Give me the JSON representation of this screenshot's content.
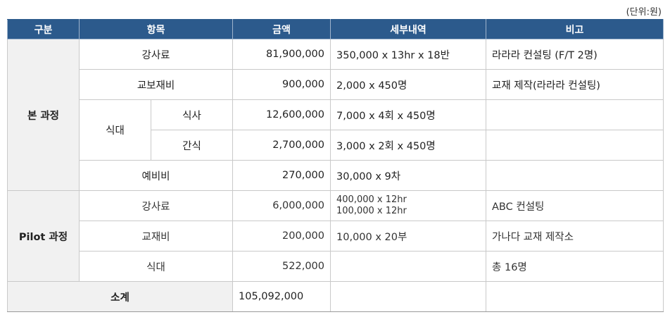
{
  "unit_label": "(단위:원)",
  "headers": {
    "category": "구분",
    "item": "항목",
    "amount": "금액",
    "detail": "세부내역",
    "note": "비고"
  },
  "main_course": {
    "label": "본 과정",
    "lecture": {
      "item": "강사료",
      "amount": "81,900,000",
      "detail": "350,000 x 13hr x 18반",
      "note": "라라라 컨설팅 (F/T 2명)"
    },
    "materials": {
      "item": "교보재비",
      "amount": "900,000",
      "detail": "2,000 x 450명",
      "note": "교재 제작(라라라 컨설팅)"
    },
    "meal_label": "식대",
    "meal": {
      "item": "식사",
      "amount": "12,600,000",
      "detail": "7,000 x 4회 x 450명",
      "note": ""
    },
    "snack": {
      "item": "간식",
      "amount": "2,700,000",
      "detail": "3,000 x 2회 x 450명",
      "note": ""
    },
    "reserve": {
      "item": "예비비",
      "amount": "270,000",
      "detail": "30,000 x 9차",
      "note": ""
    }
  },
  "pilot_course": {
    "label": "Pilot 과정",
    "lecture": {
      "item": "강사료",
      "amount": "6,000,000",
      "detail_line1": "400,000 x 12hr",
      "detail_line2": "100,000 x 12hr",
      "note": "ABC 컨설팅"
    },
    "materials": {
      "item": "교재비",
      "amount": "200,000",
      "detail": "10,000 x 20부",
      "note": "가나다 교재 제작소"
    },
    "meal": {
      "item": "식대",
      "amount": "522,000",
      "detail": "",
      "note": "총 16명"
    }
  },
  "subtotal": {
    "label": "소계",
    "amount": "105,092,000"
  }
}
